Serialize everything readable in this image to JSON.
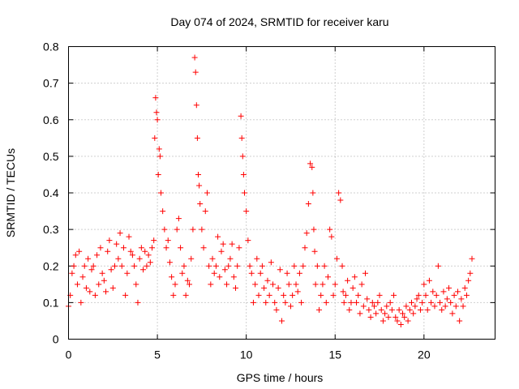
{
  "chart_data": {
    "type": "scatter",
    "title": "Day 074 of 2024, SRMTID for receiver karu",
    "xlabel": "GPS time / hours",
    "ylabel": "SRMTID / TECUs",
    "xlim": [
      0,
      24
    ],
    "ylim": [
      0,
      0.8
    ],
    "x_ticks": [
      0,
      5,
      10,
      15,
      20
    ],
    "x_tick_labels": [
      "0",
      "5",
      "10",
      "15",
      "20"
    ],
    "y_ticks": [
      0,
      0.1,
      0.2,
      0.3,
      0.4,
      0.5,
      0.6,
      0.7,
      0.8
    ],
    "y_tick_labels": [
      "0",
      "0.1",
      "0.2",
      "0.3",
      "0.4",
      "0.5",
      "0.6",
      "0.7",
      "0.8"
    ],
    "grid": true,
    "marker": "+",
    "color": "#ff0000",
    "series": [
      {
        "name": "SRMTID",
        "x": [
          0.0,
          0.1,
          0.2,
          0.3,
          0.4,
          0.5,
          0.6,
          0.7,
          0.8,
          0.9,
          1.0,
          1.1,
          1.2,
          1.3,
          1.4,
          1.5,
          1.6,
          1.7,
          1.8,
          1.9,
          2.0,
          2.1,
          2.2,
          2.3,
          2.4,
          2.5,
          2.6,
          2.7,
          2.8,
          2.9,
          3.0,
          3.1,
          3.2,
          3.3,
          3.4,
          3.5,
          3.6,
          3.7,
          3.8,
          3.9,
          4.0,
          4.1,
          4.2,
          4.3,
          4.4,
          4.5,
          4.6,
          4.7,
          4.8,
          4.85,
          4.9,
          4.95,
          5.0,
          5.05,
          5.1,
          5.15,
          5.2,
          5.3,
          5.4,
          5.5,
          5.6,
          5.7,
          5.8,
          5.9,
          6.0,
          6.1,
          6.2,
          6.3,
          6.4,
          6.5,
          6.6,
          6.7,
          6.8,
          6.9,
          7.0,
          7.1,
          7.15,
          7.2,
          7.25,
          7.3,
          7.35,
          7.4,
          7.5,
          7.6,
          7.7,
          7.8,
          7.9,
          8.0,
          8.1,
          8.2,
          8.3,
          8.4,
          8.5,
          8.6,
          8.7,
          8.8,
          8.9,
          9.0,
          9.1,
          9.2,
          9.3,
          9.4,
          9.5,
          9.6,
          9.7,
          9.75,
          9.8,
          9.85,
          9.9,
          10.0,
          10.1,
          10.2,
          10.3,
          10.4,
          10.5,
          10.6,
          10.7,
          10.8,
          10.9,
          11.0,
          11.1,
          11.2,
          11.3,
          11.4,
          11.5,
          11.6,
          11.7,
          11.8,
          11.9,
          12.0,
          12.1,
          12.2,
          12.3,
          12.4,
          12.5,
          12.6,
          12.7,
          12.8,
          12.9,
          13.0,
          13.1,
          13.2,
          13.3,
          13.4,
          13.5,
          13.6,
          13.7,
          13.75,
          13.8,
          13.85,
          13.9,
          14.0,
          14.1,
          14.2,
          14.3,
          14.4,
          14.5,
          14.6,
          14.7,
          14.8,
          14.9,
          15.0,
          15.1,
          15.2,
          15.3,
          15.4,
          15.45,
          15.5,
          15.6,
          15.7,
          15.8,
          15.9,
          16.0,
          16.1,
          16.2,
          16.3,
          16.4,
          16.5,
          16.6,
          16.7,
          16.8,
          16.9,
          17.0,
          17.1,
          17.2,
          17.3,
          17.4,
          17.5,
          17.6,
          17.7,
          17.8,
          17.9,
          18.0,
          18.1,
          18.2,
          18.3,
          18.4,
          18.5,
          18.6,
          18.7,
          18.8,
          18.9,
          19.0,
          19.1,
          19.2,
          19.3,
          19.4,
          19.5,
          19.6,
          19.7,
          19.8,
          19.9,
          20.0,
          20.1,
          20.2,
          20.3,
          20.4,
          20.5,
          20.6,
          20.7,
          20.8,
          20.9,
          21.0,
          21.1,
          21.2,
          21.3,
          21.4,
          21.5,
          21.6,
          21.7,
          21.8,
          21.9,
          22.0,
          22.1,
          22.2,
          22.3,
          22.4,
          22.5,
          22.6,
          22.7
        ],
        "y": [
          0.09,
          0.12,
          0.18,
          0.2,
          0.23,
          0.15,
          0.24,
          0.1,
          0.17,
          0.2,
          0.14,
          0.22,
          0.13,
          0.19,
          0.2,
          0.12,
          0.23,
          0.15,
          0.25,
          0.18,
          0.16,
          0.13,
          0.24,
          0.27,
          0.19,
          0.14,
          0.2,
          0.26,
          0.22,
          0.29,
          0.2,
          0.25,
          0.12,
          0.18,
          0.28,
          0.24,
          0.23,
          0.2,
          0.15,
          0.1,
          0.22,
          0.25,
          0.19,
          0.24,
          0.2,
          0.23,
          0.21,
          0.25,
          0.27,
          0.55,
          0.66,
          0.62,
          0.6,
          0.45,
          0.52,
          0.5,
          0.4,
          0.35,
          0.3,
          0.25,
          0.27,
          0.21,
          0.17,
          0.12,
          0.15,
          0.3,
          0.33,
          0.25,
          0.18,
          0.2,
          0.12,
          0.16,
          0.15,
          0.22,
          0.3,
          0.77,
          0.73,
          0.64,
          0.55,
          0.45,
          0.42,
          0.37,
          0.3,
          0.25,
          0.35,
          0.4,
          0.2,
          0.15,
          0.22,
          0.18,
          0.2,
          0.28,
          0.17,
          0.24,
          0.26,
          0.19,
          0.15,
          0.2,
          0.22,
          0.26,
          0.17,
          0.14,
          0.2,
          0.25,
          0.61,
          0.55,
          0.5,
          0.45,
          0.4,
          0.35,
          0.27,
          0.2,
          0.18,
          0.1,
          0.15,
          0.22,
          0.12,
          0.18,
          0.2,
          0.14,
          0.1,
          0.16,
          0.12,
          0.21,
          0.15,
          0.1,
          0.08,
          0.14,
          0.19,
          0.05,
          0.12,
          0.1,
          0.18,
          0.15,
          0.09,
          0.12,
          0.2,
          0.15,
          0.13,
          0.18,
          0.1,
          0.2,
          0.25,
          0.29,
          0.37,
          0.48,
          0.47,
          0.4,
          0.3,
          0.24,
          0.15,
          0.2,
          0.08,
          0.12,
          0.15,
          0.2,
          0.1,
          0.17,
          0.3,
          0.28,
          0.12,
          0.15,
          0.22,
          0.4,
          0.38,
          0.2,
          0.13,
          0.1,
          0.12,
          0.16,
          0.08,
          0.1,
          0.14,
          0.17,
          0.1,
          0.12,
          0.07,
          0.15,
          0.09,
          0.18,
          0.11,
          0.08,
          0.06,
          0.1,
          0.09,
          0.07,
          0.1,
          0.12,
          0.08,
          0.05,
          0.07,
          0.09,
          0.06,
          0.1,
          0.08,
          0.12,
          0.06,
          0.05,
          0.08,
          0.04,
          0.07,
          0.06,
          0.09,
          0.05,
          0.08,
          0.1,
          0.07,
          0.09,
          0.11,
          0.12,
          0.08,
          0.1,
          0.15,
          0.12,
          0.08,
          0.16,
          0.1,
          0.13,
          0.09,
          0.12,
          0.2,
          0.1,
          0.08,
          0.13,
          0.09,
          0.11,
          0.14,
          0.1,
          0.07,
          0.12,
          0.09,
          0.13,
          0.05,
          0.11,
          0.09,
          0.14,
          0.12,
          0.16,
          0.18,
          0.22
        ]
      }
    ]
  }
}
